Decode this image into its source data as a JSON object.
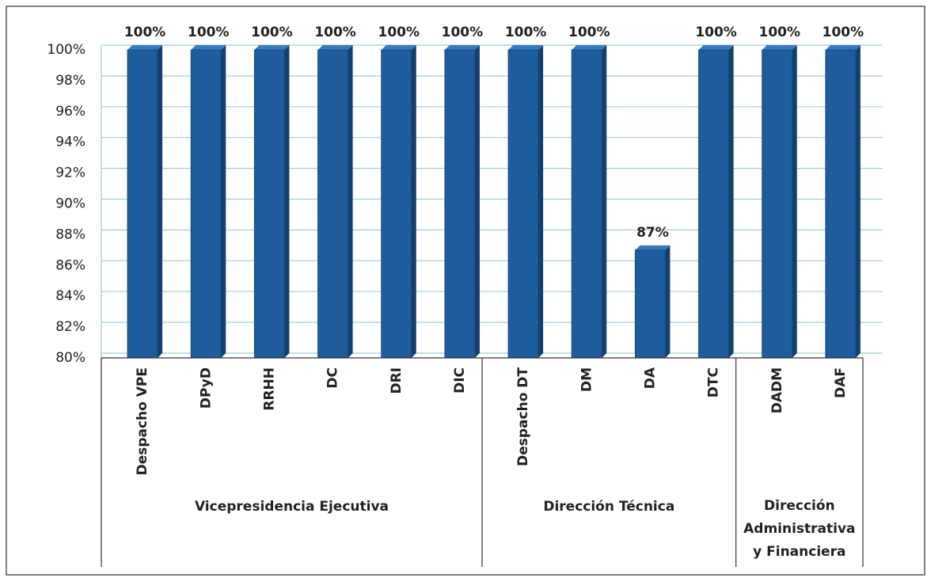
{
  "chart_data": {
    "type": "bar",
    "categories": [
      "Despacho VPE",
      "DPyD",
      "RRHH",
      "DC",
      "DRI",
      "DIC",
      "Despacho DT",
      "DM",
      "DA",
      "DTC",
      "DADM",
      "DAF"
    ],
    "values": [
      100,
      100,
      100,
      100,
      100,
      100,
      100,
      100,
      87,
      100,
      100,
      100
    ],
    "value_labels": [
      "100%",
      "100%",
      "100%",
      "100%",
      "100%",
      "100%",
      "100%",
      "100%",
      "87%",
      "100%",
      "100%",
      "100%"
    ],
    "color": "#1f5c9c",
    "ylim": [
      80,
      100
    ],
    "yticks": [
      {
        "value": 80,
        "label": "80%"
      },
      {
        "value": 82,
        "label": "82%"
      },
      {
        "value": 84,
        "label": "84%"
      },
      {
        "value": 86,
        "label": "86%"
      },
      {
        "value": 88,
        "label": "88%"
      },
      {
        "value": 90,
        "label": "90%"
      },
      {
        "value": 92,
        "label": "92%"
      },
      {
        "value": 94,
        "label": "94%"
      },
      {
        "value": 96,
        "label": "96%"
      },
      {
        "value": 98,
        "label": "98%"
      },
      {
        "value": 100,
        "label": "100%"
      }
    ],
    "grid": true,
    "groups": [
      {
        "label_lines": [
          "Vicepresidencia Ejecutiva"
        ],
        "size": 6
      },
      {
        "label_lines": [
          "Dirección Técnica"
        ],
        "size": 4
      },
      {
        "label_lines": [
          "Dirección",
          "Administrativa",
          "y Financiera"
        ],
        "size": 2
      }
    ]
  }
}
